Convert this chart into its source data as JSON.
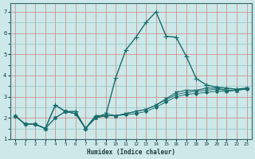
{
  "title": "",
  "xlabel": "Humidex (Indice chaleur)",
  "bg_color": "#cce8e8",
  "line_color": "#1a6b6b",
  "xlim": [
    -0.5,
    23.5
  ],
  "ylim": [
    1.0,
    7.4
  ],
  "yticks": [
    1,
    2,
    3,
    4,
    5,
    6,
    7
  ],
  "xticks": [
    0,
    1,
    2,
    3,
    4,
    5,
    6,
    7,
    8,
    9,
    10,
    11,
    12,
    13,
    14,
    15,
    16,
    17,
    18,
    19,
    20,
    21,
    22,
    23
  ],
  "series": [
    {
      "x": [
        0,
        1,
        2,
        3,
        4,
        5,
        6,
        7,
        8,
        9,
        10,
        11,
        12,
        13,
        14,
        15,
        16,
        17,
        18,
        19,
        20,
        21,
        22,
        23
      ],
      "y": [
        2.1,
        1.7,
        1.7,
        1.5,
        2.6,
        2.3,
        2.3,
        1.5,
        2.1,
        2.1,
        3.9,
        5.2,
        5.8,
        6.5,
        7.0,
        5.85,
        5.8,
        4.9,
        3.85,
        3.55,
        3.45,
        3.4,
        3.35,
        3.4
      ],
      "marker": "+",
      "markersize": 4,
      "lw": 1.0
    },
    {
      "x": [
        0,
        1,
        2,
        3,
        4,
        5,
        6,
        7,
        8,
        9,
        10,
        11,
        12,
        13,
        14,
        15,
        16,
        17,
        18,
        19,
        20,
        21,
        22,
        23
      ],
      "y": [
        2.1,
        1.7,
        1.7,
        1.5,
        2.0,
        2.3,
        2.2,
        1.5,
        2.0,
        2.2,
        2.1,
        2.2,
        2.3,
        2.4,
        2.6,
        2.9,
        3.2,
        3.3,
        3.3,
        3.4,
        3.4,
        3.3,
        3.3,
        3.4
      ],
      "marker": "x",
      "markersize": 3,
      "lw": 0.8
    },
    {
      "x": [
        0,
        1,
        2,
        3,
        4,
        5,
        6,
        7,
        8,
        9,
        10,
        11,
        12,
        13,
        14,
        15,
        16,
        17,
        18,
        19,
        20,
        21,
        22,
        23
      ],
      "y": [
        2.1,
        1.7,
        1.7,
        1.5,
        2.0,
        2.3,
        2.2,
        1.5,
        2.0,
        2.1,
        2.1,
        2.15,
        2.2,
        2.3,
        2.5,
        2.75,
        3.0,
        3.1,
        3.15,
        3.2,
        3.25,
        3.25,
        3.3,
        3.35
      ],
      "marker": "D",
      "markersize": 2,
      "lw": 0.7
    },
    {
      "x": [
        0,
        1,
        2,
        3,
        4,
        5,
        6,
        7,
        8,
        9,
        10,
        11,
        12,
        13,
        14,
        15,
        16,
        17,
        18,
        19,
        20,
        21,
        22,
        23
      ],
      "y": [
        2.1,
        1.7,
        1.7,
        1.5,
        2.6,
        2.3,
        2.2,
        1.5,
        2.0,
        2.1,
        2.1,
        2.2,
        2.3,
        2.4,
        2.6,
        2.85,
        3.1,
        3.2,
        3.25,
        3.3,
        3.35,
        3.3,
        3.3,
        3.4
      ],
      "marker": "^",
      "markersize": 2,
      "lw": 0.7
    }
  ]
}
